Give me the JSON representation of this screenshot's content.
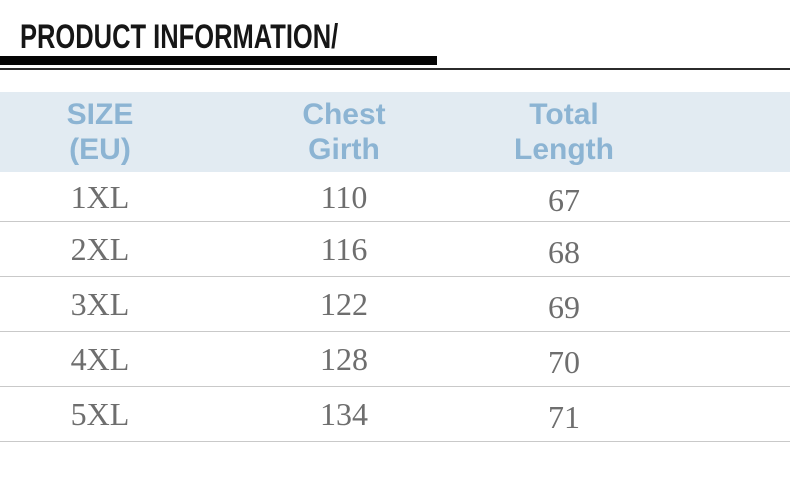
{
  "page_title": "PRODUCT INFORMATION/",
  "colors": {
    "title_bar": "#050505",
    "header_bg": "#e2ebf2",
    "header_text": "#8cb4d3",
    "data_text": "#6e6e6e",
    "divider": "#c9c9c9"
  },
  "table": {
    "headers": [
      {
        "line1": "SIZE",
        "line2": "(EU)"
      },
      {
        "line1": "Chest",
        "line2": "Girth"
      },
      {
        "line1": "Total",
        "line2": "Length"
      }
    ],
    "rows": [
      {
        "size": "1XL",
        "chest": "110",
        "total_length": "67"
      },
      {
        "size": "2XL",
        "chest": "116",
        "total_length": "68"
      },
      {
        "size": "3XL",
        "chest": "122",
        "total_length": "69"
      },
      {
        "size": "4XL",
        "chest": "128",
        "total_length": "70"
      },
      {
        "size": "5XL",
        "chest": "134",
        "total_length": "71"
      }
    ]
  },
  "chart_data": {
    "type": "table",
    "title": "PRODUCT INFORMATION",
    "columns": [
      "SIZE (EU)",
      "Chest Girth",
      "Total Length"
    ],
    "rows": [
      [
        "1XL",
        110,
        67
      ],
      [
        "2XL",
        116,
        68
      ],
      [
        "3XL",
        122,
        69
      ],
      [
        "4XL",
        128,
        70
      ],
      [
        "5XL",
        134,
        71
      ]
    ],
    "layout_hints": {
      "header_background": "#e2ebf2",
      "header_text_color": "#8cb4d3",
      "body_text_color": "#6e6e6e",
      "row_dividers": true
    }
  }
}
